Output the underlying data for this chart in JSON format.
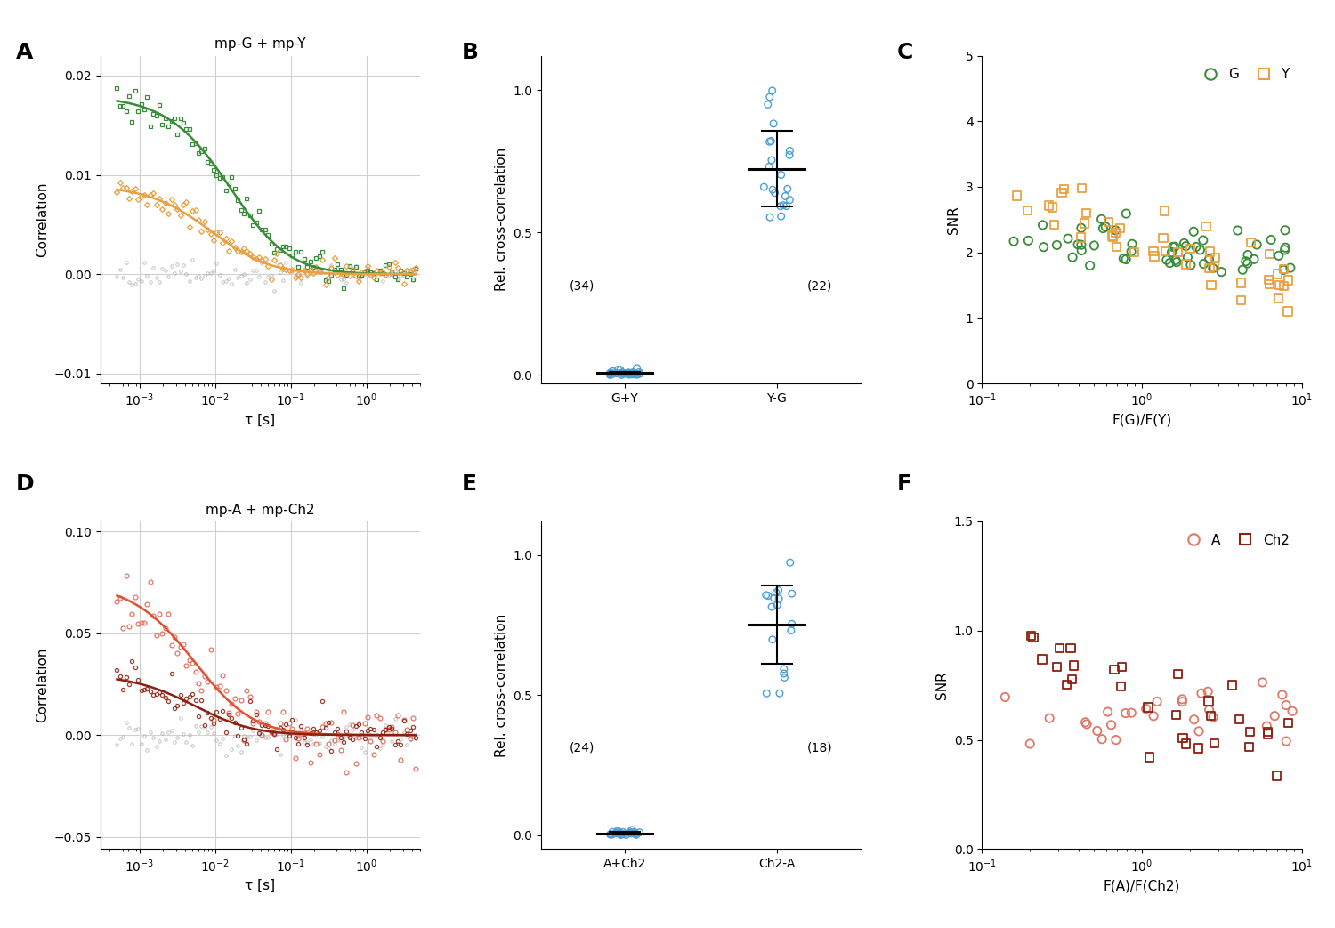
{
  "panel_A_title": "mp-G + mp-Y",
  "panel_D_title": "mp-A + mp-Ch2",
  "color_green": "#3a8c3a",
  "color_orange": "#e8a040",
  "color_gray": "#aaaaaa",
  "color_blue": "#4a9fd4",
  "color_red": "#e05030",
  "color_darkred": "#8b2010",
  "color_salmon": "#e07868",
  "xlabel_tau": "τ [s]",
  "ylabel_corr": "Correlation",
  "ylabel_rcc": "Rel. cross-correlation",
  "xlabel_C": "F(G)/F(Y)",
  "ylabel_snr": "SNR",
  "xlabel_F": "F(A)/F(Ch2)",
  "B_categories": [
    "G+Y",
    "Y-G"
  ],
  "B_n": [
    "(34)",
    "(22)"
  ],
  "E_categories": [
    "A+Ch2",
    "Ch2-A"
  ],
  "E_n": [
    "(24)",
    "(18)"
  ],
  "C_legend_labels": [
    "G",
    "Y"
  ],
  "F_legend_labels": [
    "A",
    "Ch2"
  ]
}
